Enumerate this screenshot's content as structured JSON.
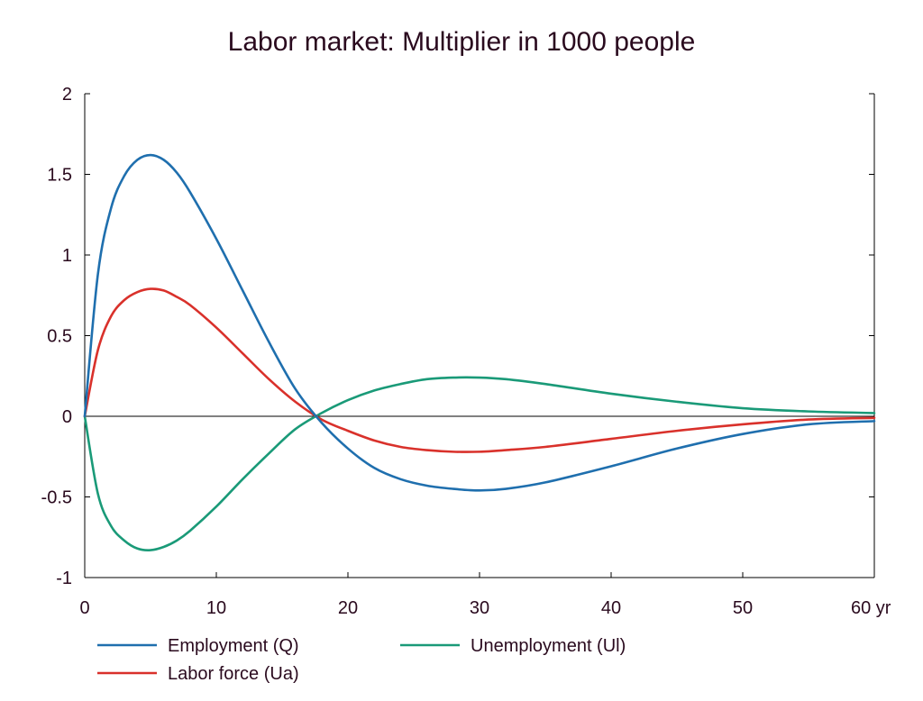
{
  "chart_data": {
    "type": "line",
    "title": "Labor market: Multiplier in 1000 people",
    "xlabel": "",
    "ylabel": "",
    "xlim": [
      0,
      60
    ],
    "ylim": [
      -1,
      2
    ],
    "x_ticks": [
      0,
      10,
      20,
      30,
      40,
      50,
      60
    ],
    "x_tick_labels": [
      "0",
      "10",
      "20",
      "30",
      "40",
      "50",
      "60 yr"
    ],
    "y_ticks": [
      2,
      1.5,
      1,
      0.5,
      0,
      -0.5,
      -1
    ],
    "y_tick_labels": [
      "2",
      "1.5",
      "1",
      "0.5",
      "0",
      "-0.5",
      "-1"
    ],
    "grid": false,
    "legend_position": "bottom",
    "series": [
      {
        "name": "Employment (Q)",
        "color": "#1f6fae",
        "x": [
          0,
          1,
          2,
          3,
          4,
          5,
          6,
          7,
          8,
          10,
          12,
          14,
          16,
          18,
          20,
          22,
          24,
          26,
          28,
          30,
          32,
          35,
          40,
          45,
          50,
          55,
          60
        ],
        "y": [
          0,
          0.88,
          1.29,
          1.49,
          1.59,
          1.62,
          1.59,
          1.51,
          1.39,
          1.1,
          0.78,
          0.46,
          0.17,
          -0.04,
          -0.2,
          -0.32,
          -0.39,
          -0.43,
          -0.45,
          -0.46,
          -0.45,
          -0.41,
          -0.31,
          -0.2,
          -0.11,
          -0.05,
          -0.03
        ]
      },
      {
        "name": "Labor force (Ua)",
        "color": "#d9312b",
        "x": [
          0,
          1,
          2,
          3,
          4,
          5,
          6,
          7,
          8,
          10,
          12,
          14,
          16,
          18,
          20,
          22,
          24,
          26,
          28,
          30,
          32,
          35,
          40,
          45,
          50,
          55,
          60
        ],
        "y": [
          0,
          0.41,
          0.62,
          0.72,
          0.77,
          0.79,
          0.78,
          0.74,
          0.69,
          0.55,
          0.39,
          0.23,
          0.09,
          -0.02,
          -0.09,
          -0.15,
          -0.19,
          -0.21,
          -0.22,
          -0.22,
          -0.21,
          -0.19,
          -0.14,
          -0.09,
          -0.05,
          -0.02,
          -0.01
        ]
      },
      {
        "name": "Unemployment (Ul)",
        "color": "#1a9a78",
        "x": [
          0,
          1,
          2,
          3,
          4,
          5,
          6,
          7,
          8,
          10,
          12,
          14,
          16,
          18,
          20,
          22,
          24,
          26,
          28,
          30,
          32,
          35,
          40,
          45,
          50,
          55,
          60
        ],
        "y": [
          0,
          -0.48,
          -0.68,
          -0.77,
          -0.82,
          -0.83,
          -0.81,
          -0.77,
          -0.71,
          -0.56,
          -0.39,
          -0.23,
          -0.08,
          0.02,
          0.1,
          0.16,
          0.2,
          0.23,
          0.24,
          0.24,
          0.23,
          0.2,
          0.14,
          0.09,
          0.05,
          0.03,
          0.02
        ]
      }
    ]
  }
}
